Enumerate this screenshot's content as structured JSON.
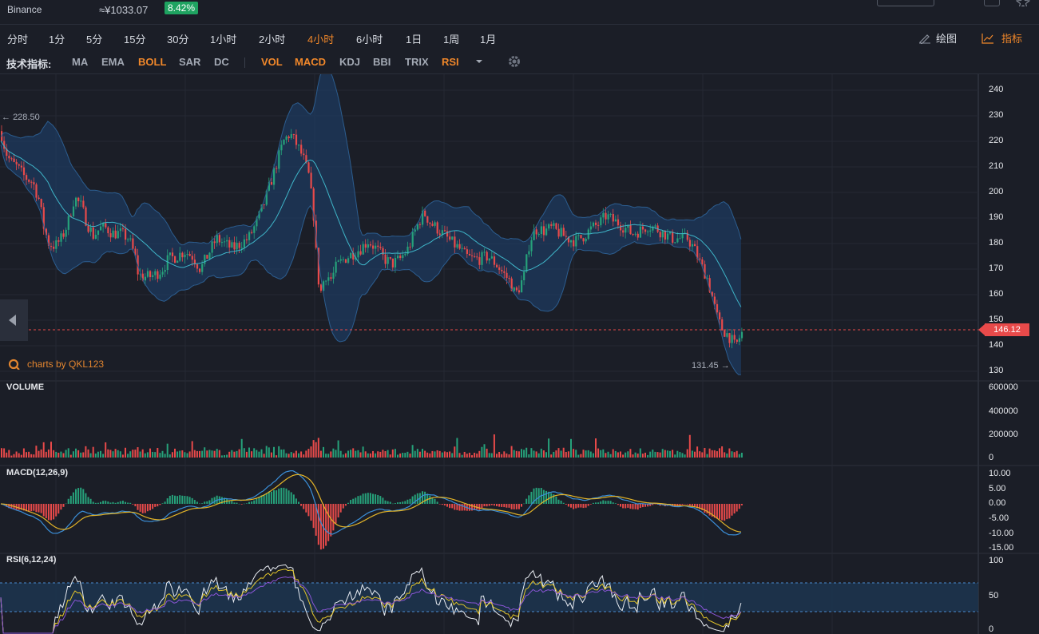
{
  "header": {
    "exchange": "Binance",
    "price_cny": "≈¥1033.07",
    "change_pct": "8.42%"
  },
  "timeframes": [
    {
      "label": "分时",
      "active": false
    },
    {
      "label": "1分",
      "active": false
    },
    {
      "label": "5分",
      "active": false
    },
    {
      "label": "15分",
      "active": false
    },
    {
      "label": "30分",
      "active": false
    },
    {
      "label": "1小时",
      "active": false
    },
    {
      "label": "2小时",
      "active": false
    },
    {
      "label": "4小时",
      "active": true
    },
    {
      "label": "6小时",
      "active": false
    },
    {
      "label": "1日",
      "active": false
    },
    {
      "label": "1周",
      "active": false
    },
    {
      "label": "1月",
      "active": false
    }
  ],
  "tools": {
    "draw_label": "绘图",
    "indicator_label": "指标"
  },
  "indicator_bar": {
    "label": "技术指标:",
    "main": [
      {
        "label": "MA",
        "active": false
      },
      {
        "label": "EMA",
        "active": false
      },
      {
        "label": "BOLL",
        "active": true
      },
      {
        "label": "SAR",
        "active": false
      },
      {
        "label": "DC",
        "active": false
      }
    ],
    "sub": [
      {
        "label": "VOL",
        "active": true
      },
      {
        "label": "MACD",
        "active": true
      },
      {
        "label": "KDJ",
        "active": false
      },
      {
        "label": "BBI",
        "active": false
      },
      {
        "label": "TRIX",
        "active": false
      },
      {
        "label": "RSI",
        "active": true
      }
    ]
  },
  "chart": {
    "brand": "charts by QKL123",
    "high_label": "228.50",
    "low_label": "131.45",
    "last_price": "146.12",
    "colors": {
      "up": "#26a17a",
      "down": "#e84a4a",
      "boll_band": "#1e3a5f",
      "mid": "#3fb6c9",
      "bg": "#1b1e27"
    },
    "price_axis": [
      "240",
      "230",
      "220",
      "210",
      "200",
      "190",
      "180",
      "170",
      "160",
      "150",
      "140",
      "130"
    ],
    "volume_label": "VOLUME",
    "volume_axis": [
      "600000",
      "400000",
      "200000",
      "0"
    ],
    "macd_label": "MACD(12,26,9)",
    "macd_axis": [
      "10.00",
      "5.00",
      "0.00",
      "-5.00",
      "-10.00",
      "-15.00"
    ],
    "rsi_label": "RSI(6,12,24)",
    "rsi_axis": [
      "100",
      "50",
      "0"
    ]
  },
  "chart_data": {
    "type": "candlestick",
    "ylim": [
      130,
      240
    ],
    "path": [
      [
        0,
        224
      ],
      [
        6,
        216
      ],
      [
        12,
        212
      ],
      [
        20,
        210
      ],
      [
        30,
        206
      ],
      [
        40,
        204
      ],
      [
        48,
        197
      ],
      [
        54,
        186
      ],
      [
        60,
        180
      ],
      [
        68,
        179
      ],
      [
        76,
        182
      ],
      [
        84,
        188
      ],
      [
        92,
        198
      ],
      [
        100,
        195
      ],
      [
        108,
        188
      ],
      [
        116,
        183
      ],
      [
        124,
        186
      ],
      [
        132,
        186
      ],
      [
        140,
        184
      ],
      [
        150,
        184
      ],
      [
        160,
        182
      ],
      [
        168,
        175
      ],
      [
        172,
        168
      ],
      [
        178,
        167
      ],
      [
        186,
        167
      ],
      [
        194,
        168
      ],
      [
        202,
        170
      ],
      [
        210,
        174
      ],
      [
        220,
        175
      ],
      [
        230,
        177
      ],
      [
        240,
        175
      ],
      [
        250,
        170
      ],
      [
        260,
        176
      ],
      [
        270,
        182
      ],
      [
        280,
        180
      ],
      [
        290,
        178
      ],
      [
        300,
        180
      ],
      [
        310,
        182
      ],
      [
        320,
        188
      ],
      [
        330,
        196
      ],
      [
        338,
        204
      ],
      [
        346,
        212
      ],
      [
        354,
        220
      ],
      [
        362,
        223
      ],
      [
        370,
        219
      ],
      [
        378,
        214
      ],
      [
        386,
        206
      ],
      [
        392,
        190
      ],
      [
        396,
        170
      ],
      [
        400,
        160
      ],
      [
        406,
        168
      ],
      [
        414,
        166
      ],
      [
        420,
        171
      ],
      [
        430,
        174
      ],
      [
        440,
        176
      ],
      [
        450,
        178
      ],
      [
        460,
        181
      ],
      [
        470,
        178
      ],
      [
        480,
        174
      ],
      [
        490,
        172
      ],
      [
        500,
        174
      ],
      [
        510,
        178
      ],
      [
        520,
        186
      ],
      [
        526,
        190
      ],
      [
        530,
        192
      ],
      [
        538,
        188
      ],
      [
        546,
        186
      ],
      [
        556,
        183
      ],
      [
        566,
        180
      ],
      [
        574,
        178
      ],
      [
        582,
        175
      ],
      [
        590,
        174
      ],
      [
        600,
        174
      ],
      [
        610,
        175
      ],
      [
        620,
        172
      ],
      [
        630,
        168
      ],
      [
        638,
        165
      ],
      [
        644,
        160
      ],
      [
        648,
        162
      ],
      [
        652,
        165
      ],
      [
        656,
        168
      ],
      [
        660,
        178
      ],
      [
        666,
        184
      ],
      [
        672,
        186
      ],
      [
        680,
        185
      ],
      [
        690,
        186
      ],
      [
        700,
        184
      ],
      [
        710,
        182
      ],
      [
        720,
        181
      ],
      [
        730,
        183
      ],
      [
        740,
        186
      ],
      [
        750,
        188
      ],
      [
        758,
        191
      ],
      [
        766,
        189
      ],
      [
        774,
        188
      ],
      [
        782,
        186
      ],
      [
        790,
        184
      ],
      [
        800,
        185
      ],
      [
        810,
        187
      ],
      [
        820,
        186
      ],
      [
        830,
        184
      ],
      [
        840,
        182
      ],
      [
        850,
        182
      ],
      [
        860,
        182
      ],
      [
        868,
        178
      ],
      [
        876,
        172
      ],
      [
        884,
        167
      ],
      [
        890,
        160
      ],
      [
        896,
        152
      ],
      [
        902,
        147
      ],
      [
        908,
        145
      ],
      [
        914,
        143
      ],
      [
        918,
        140
      ],
      [
        922,
        141
      ],
      [
        926,
        144
      ],
      [
        930,
        146
      ]
    ]
  }
}
